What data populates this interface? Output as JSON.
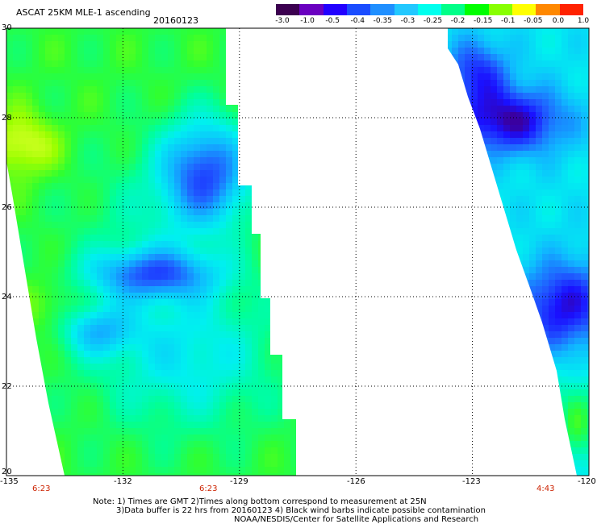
{
  "header": {
    "title": "ASCAT 25KM MLE-1 ascending",
    "date": "20160123"
  },
  "colorbar": {
    "labels": [
      "-3.0",
      "-1.0",
      "-0.5",
      "-0.4",
      "-0.35",
      "-0.3",
      "-0.25",
      "-0.2",
      "-0.15",
      "-0.1",
      "-0.05",
      "0.0",
      "1.0"
    ],
    "colors": [
      "#3c0050",
      "#6a00c0",
      "#2200ff",
      "#1a4cff",
      "#1f8fff",
      "#22c8ff",
      "#00ffee",
      "#00ff88",
      "#00ff00",
      "#88ff00",
      "#ffff00",
      "#ff8800",
      "#ff2200"
    ]
  },
  "map": {
    "lon_labels": [
      "-135",
      "-132",
      "-129",
      "-126",
      "-123",
      "-120"
    ],
    "lat_labels": [
      "30",
      "28",
      "26",
      "24",
      "22",
      "20"
    ],
    "lon_range": [
      -135,
      -120
    ],
    "lat_range": [
      20,
      30
    ],
    "grid": true
  },
  "swaths": {
    "times": [
      "6:23",
      "6:23",
      "4:43"
    ]
  },
  "notes": {
    "line1": "Note: 1) Times are GMT 2)Times along bottom correspond to measurement at 25N",
    "line2": "3)Data buffer is 22 hrs from 20160123 4) Black wind barbs indicate possible contamination",
    "line3": "NOAA/NESDIS/Center for Satellite Applications and Research"
  }
}
